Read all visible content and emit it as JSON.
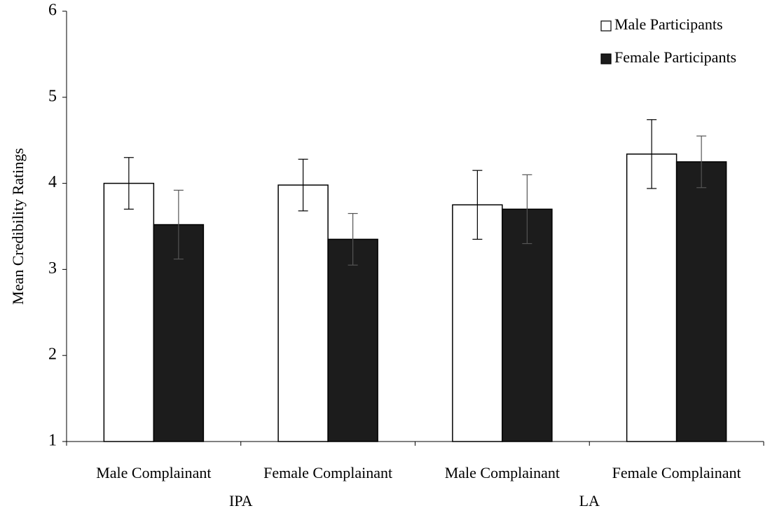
{
  "chart_data": {
    "type": "bar",
    "ylabel": "Mean Credibility Ratings",
    "categories": [
      "Male Complainant",
      "Female Complainant",
      "Male Complainant",
      "Female Complainant"
    ],
    "group_labels": [
      "IPA",
      "LA"
    ],
    "series": [
      {
        "name": "Male Participants",
        "color": "#ffffff",
        "values": [
          4.0,
          3.98,
          3.75,
          4.34
        ],
        "errors": [
          0.3,
          0.3,
          0.4,
          0.4
        ]
      },
      {
        "name": "Female Participants",
        "color": "#1c1c1c",
        "values": [
          3.52,
          3.35,
          3.7,
          4.25
        ],
        "errors": [
          0.4,
          0.3,
          0.4,
          0.3
        ]
      }
    ],
    "ylim": [
      1,
      6
    ],
    "yticks": [
      1,
      2,
      3,
      4,
      5,
      6
    ],
    "grid": false,
    "legend": "upper right"
  }
}
